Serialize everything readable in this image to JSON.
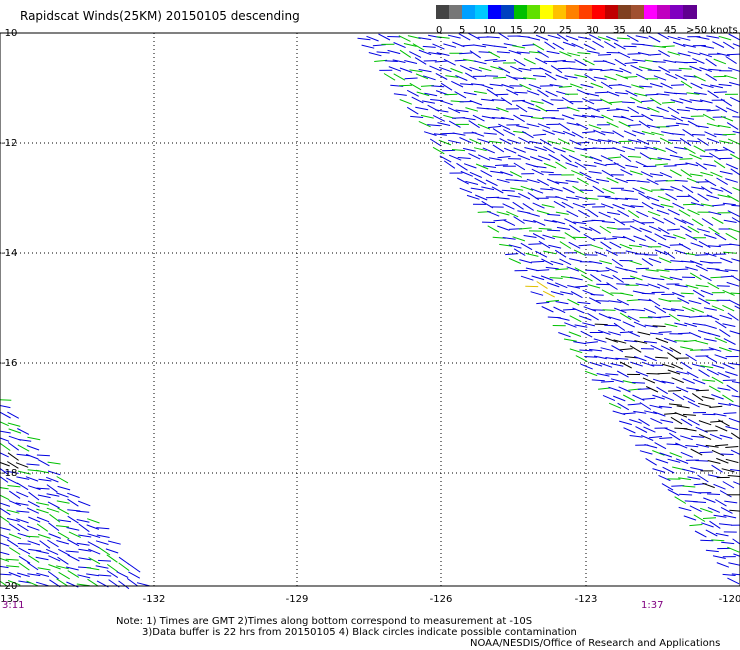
{
  "title": "Rapidscat Winds(25KM) 20150105 descending",
  "legend": {
    "labels": [
      "0",
      "5",
      "10",
      "15",
      "20",
      "25",
      "30",
      "35",
      "40",
      "45",
      ">50 knots"
    ],
    "colors": [
      "#444444",
      "#777777",
      "#00a0ff",
      "#00c8ff",
      "#0000ff",
      "#0040c0",
      "#00c000",
      "#60e000",
      "#ffff00",
      "#ffc000",
      "#ff8000",
      "#ff4000",
      "#ff0000",
      "#c00000",
      "#804020",
      "#a05030",
      "#ff00ff",
      "#c000c0",
      "#8000c0",
      "#600090"
    ]
  },
  "map": {
    "lat_labels": [
      "-10",
      "-12",
      "-14",
      "-16",
      "-18",
      "-20"
    ],
    "lon_labels": [
      "-135",
      "-132",
      "-129",
      "-126",
      "-123",
      "-120"
    ],
    "grid": true,
    "wind_colors": {
      "blue": "#0000e0",
      "green": "#00c000",
      "black": "#000000",
      "yellow": "#e0c000"
    }
  },
  "times": {
    "left": "3:11",
    "right": "1:37"
  },
  "notes": {
    "line1": "Note: 1) Times are GMT 2)Times along bottom correspond to measurement at -10S",
    "line2": "3)Data buffer is 22 hrs from 20150105 4) Black circles indicate possible contamination",
    "credit": "NOAA/NESDIS/Office of Research and Applications"
  }
}
